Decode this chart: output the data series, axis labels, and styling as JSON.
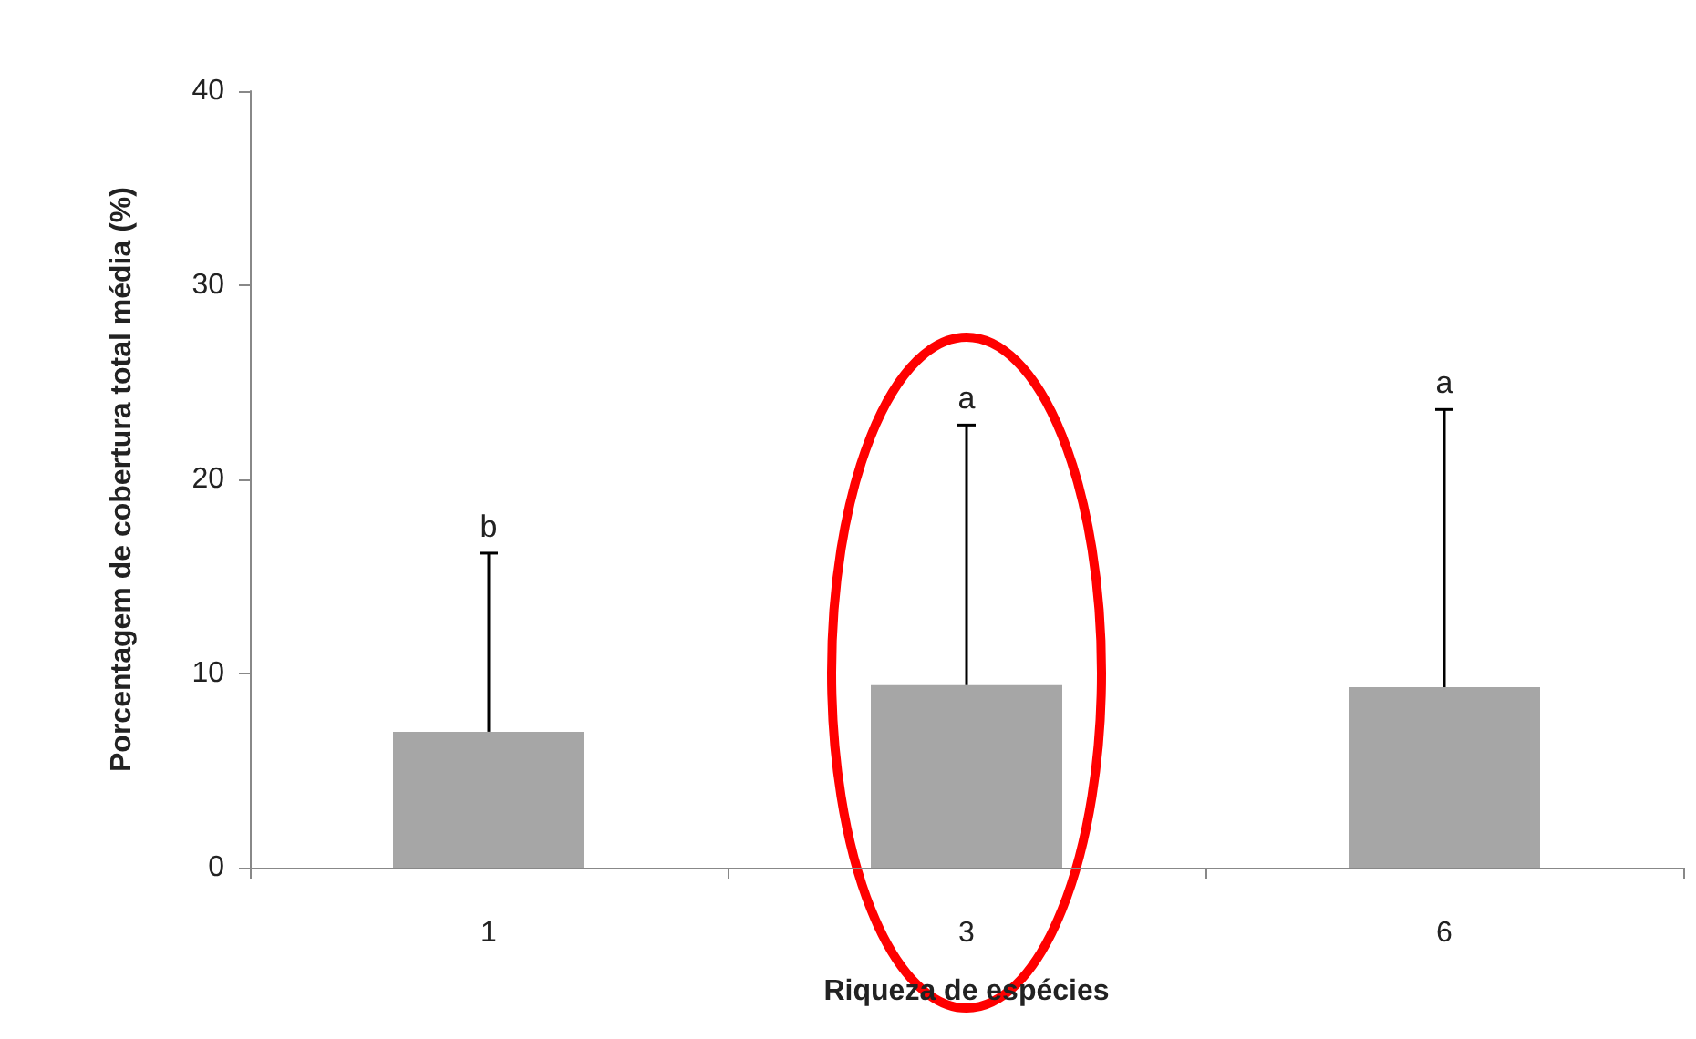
{
  "chart_data": {
    "type": "bar",
    "xlabel": "Riqueza de espécies",
    "ylabel": "Porcentagem de cobertura total média (%)",
    "categories": [
      "1",
      "3",
      "6"
    ],
    "values": [
      7.0,
      9.4,
      9.3
    ],
    "color": "#a6a6a6",
    "errors": [
      [
        7.0,
        16.2
      ],
      [
        9.4,
        22.8
      ],
      [
        9.3,
        23.6
      ]
    ],
    "ylim": [
      0,
      40
    ],
    "yticks": [
      0,
      10,
      20,
      30,
      40
    ],
    "grid": false,
    "annotations": [
      "b",
      "a",
      "a"
    ]
  }
}
